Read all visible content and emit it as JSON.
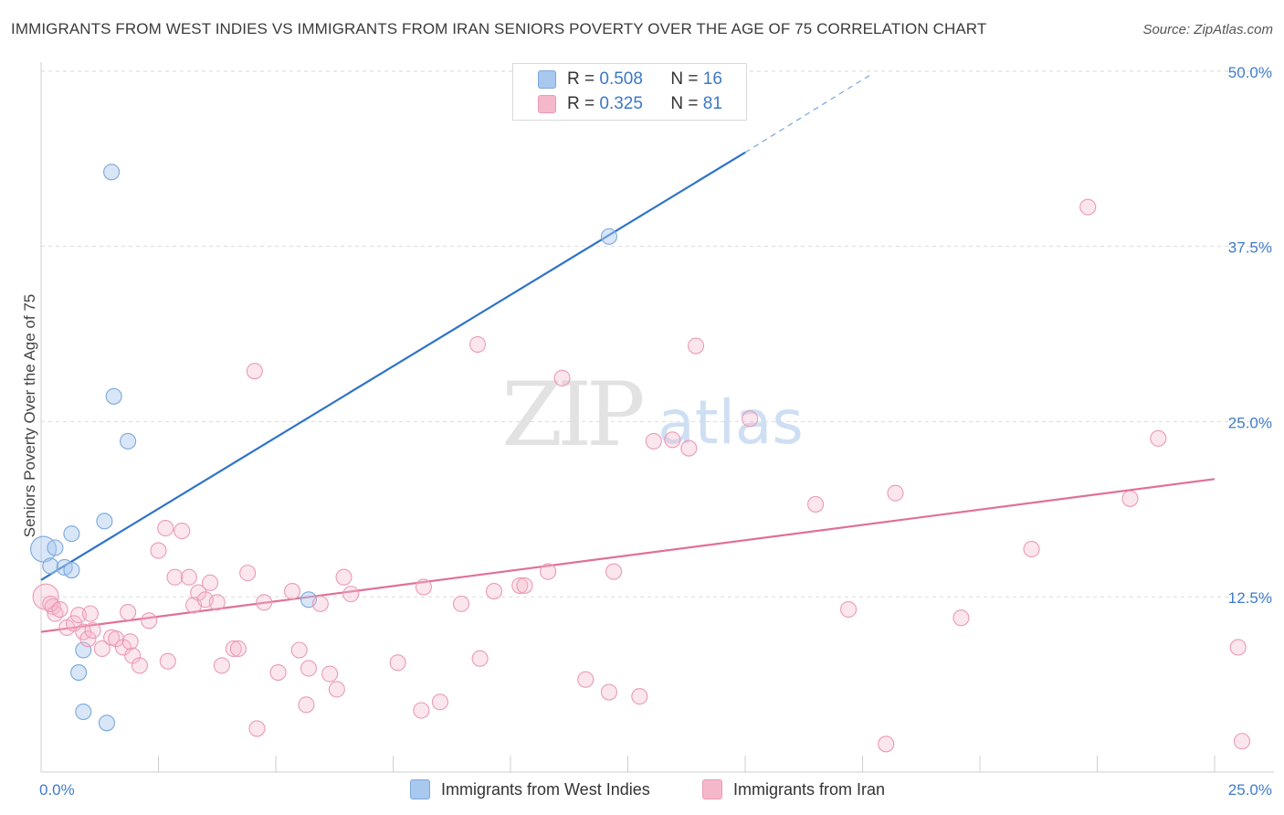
{
  "title": "IMMIGRANTS FROM WEST INDIES VS IMMIGRANTS FROM IRAN SENIORS POVERTY OVER THE AGE OF 75 CORRELATION CHART",
  "source": "Source: ZipAtlas.com",
  "watermark": {
    "zip": "ZIP",
    "atlas": "atlas"
  },
  "legend": {
    "rows": [
      {
        "r_label": "R =",
        "r_value": "0.508",
        "n_label": "N =",
        "n_value": "16",
        "color": "#a8c8ee"
      },
      {
        "r_label": "R =",
        "r_value": "0.325",
        "n_label": "N =",
        "n_value": "81",
        "color": "#f5b8cb"
      }
    ]
  },
  "bottom_legend": [
    {
      "label": "Immigrants from West Indies",
      "color": "#a8c8ee"
    },
    {
      "label": "Immigrants from Iran",
      "color": "#f5b8cb"
    }
  ],
  "colors": {
    "blue_line": "#2f73c9",
    "pink_line": "#e07099",
    "blue_fill": "rgba(168,200,238,0.45)",
    "blue_stroke": "#7aa8dd",
    "pink_fill": "rgba(245,184,203,0.35)",
    "pink_stroke": "#ea9ab5",
    "tick_text": "#3f7cc9"
  },
  "chart_data": {
    "type": "scatter",
    "title": "IMMIGRANTS FROM WEST INDIES VS IMMIGRANTS FROM IRAN SENIORS POVERTY OVER THE AGE OF 75 CORRELATION CHART",
    "xlabel": "",
    "ylabel": "Seniors Poverty Over the Age of 75",
    "xlim": [
      0,
      25
    ],
    "ylim": [
      0,
      50
    ],
    "x_tick_labels": [
      {
        "value": 0,
        "label": "0.0%"
      },
      {
        "value": 25,
        "label": "25.0%"
      }
    ],
    "y_tick_labels": [
      {
        "value": 12.5,
        "label": "12.5%"
      },
      {
        "value": 25,
        "label": "25.0%"
      },
      {
        "value": 37.5,
        "label": "37.5%"
      },
      {
        "value": 50,
        "label": "50.0%"
      }
    ],
    "grid": true,
    "series": [
      {
        "name": "Immigrants from West Indies",
        "r": 0.508,
        "n": 16,
        "points": [
          [
            0.05,
            15.9
          ],
          [
            0.3,
            16.0
          ],
          [
            0.2,
            14.7
          ],
          [
            0.5,
            14.6
          ],
          [
            0.65,
            14.4
          ],
          [
            0.65,
            17.0
          ],
          [
            1.35,
            17.9
          ],
          [
            1.55,
            26.8
          ],
          [
            1.85,
            23.6
          ],
          [
            1.5,
            42.8
          ],
          [
            5.7,
            12.3
          ],
          [
            12.1,
            38.2
          ],
          [
            0.9,
            8.7
          ],
          [
            0.8,
            7.1
          ],
          [
            0.9,
            4.3
          ],
          [
            1.4,
            3.5
          ]
        ],
        "trend": {
          "x0": 0,
          "y0": 13.7,
          "x1": 15.0,
          "y1": 44.2,
          "dash_to_x": 17.7,
          "dash_to_y": 49.8
        }
      },
      {
        "name": "Immigrants from Iran",
        "r": 0.325,
        "n": 81,
        "points": [
          [
            0.1,
            12.5
          ],
          [
            0.25,
            11.8
          ],
          [
            0.3,
            11.3
          ],
          [
            0.55,
            10.3
          ],
          [
            0.7,
            10.6
          ],
          [
            0.9,
            10.0
          ],
          [
            1.0,
            9.5
          ],
          [
            1.1,
            10.1
          ],
          [
            0.8,
            11.2
          ],
          [
            1.05,
            11.3
          ],
          [
            1.3,
            8.8
          ],
          [
            1.5,
            9.6
          ],
          [
            1.6,
            9.5
          ],
          [
            1.75,
            8.9
          ],
          [
            1.9,
            9.3
          ],
          [
            1.95,
            8.3
          ],
          [
            2.1,
            7.6
          ],
          [
            2.3,
            10.8
          ],
          [
            2.5,
            15.8
          ],
          [
            2.65,
            17.4
          ],
          [
            2.85,
            13.9
          ],
          [
            3.0,
            17.2
          ],
          [
            3.15,
            13.9
          ],
          [
            3.25,
            11.9
          ],
          [
            3.35,
            12.8
          ],
          [
            3.5,
            12.3
          ],
          [
            3.6,
            13.5
          ],
          [
            3.75,
            12.1
          ],
          [
            3.85,
            7.6
          ],
          [
            4.1,
            8.8
          ],
          [
            4.2,
            8.8
          ],
          [
            4.4,
            14.2
          ],
          [
            4.55,
            28.6
          ],
          [
            4.6,
            3.1
          ],
          [
            4.75,
            12.1
          ],
          [
            5.05,
            7.1
          ],
          [
            5.35,
            12.9
          ],
          [
            5.5,
            8.7
          ],
          [
            5.65,
            4.8
          ],
          [
            5.7,
            7.4
          ],
          [
            5.95,
            12.0
          ],
          [
            6.15,
            7.0
          ],
          [
            6.3,
            5.9
          ],
          [
            6.45,
            13.9
          ],
          [
            6.6,
            12.7
          ],
          [
            7.6,
            7.8
          ],
          [
            8.15,
            13.2
          ],
          [
            8.1,
            4.4
          ],
          [
            8.5,
            5.0
          ],
          [
            8.95,
            12.0
          ],
          [
            9.3,
            30.5
          ],
          [
            9.35,
            8.1
          ],
          [
            9.65,
            12.9
          ],
          [
            10.2,
            13.3
          ],
          [
            10.8,
            14.3
          ],
          [
            11.1,
            28.1
          ],
          [
            11.6,
            6.6
          ],
          [
            12.1,
            5.7
          ],
          [
            12.2,
            14.3
          ],
          [
            12.75,
            5.4
          ],
          [
            13.05,
            23.6
          ],
          [
            13.45,
            23.7
          ],
          [
            13.8,
            23.1
          ],
          [
            13.95,
            30.4
          ],
          [
            15.1,
            25.2
          ],
          [
            16.5,
            19.1
          ],
          [
            17.2,
            11.6
          ],
          [
            18.0,
            2.0
          ],
          [
            18.2,
            19.9
          ],
          [
            19.6,
            11.0
          ],
          [
            21.1,
            15.9
          ],
          [
            22.3,
            40.3
          ],
          [
            23.2,
            19.5
          ],
          [
            23.8,
            23.8
          ],
          [
            25.5,
            8.9
          ],
          [
            26.2,
            2.2
          ],
          [
            0.2,
            12.0
          ],
          [
            0.4,
            11.6
          ],
          [
            1.85,
            11.4
          ],
          [
            2.7,
            7.9
          ],
          [
            10.3,
            13.3
          ]
        ],
        "trend": {
          "x0": 0,
          "y0": 10.0,
          "x1": 25,
          "y1": 20.9
        }
      }
    ]
  }
}
